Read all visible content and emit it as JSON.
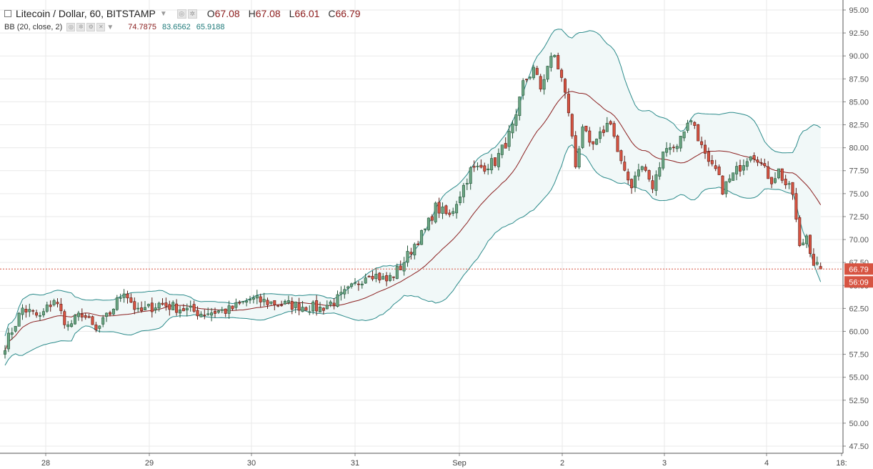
{
  "legend": {
    "symbol_title": "Litecoin / Dollar, 60, BITSTAMP",
    "open_label": "O",
    "open": "67.08",
    "high_label": "H",
    "high": "67.08",
    "low_label": "L",
    "low": "66.01",
    "close_label": "C",
    "close": "66.79",
    "indicator_title": "BB (20, close, 2)",
    "bb_basis": "74.7875",
    "bb_upper": "83.6562",
    "bb_lower": "65.9188"
  },
  "colors": {
    "up": "#6ba583",
    "up_border": "#225437",
    "down": "#d75442",
    "down_border": "#5b1a13",
    "basis": "#8b2020",
    "band": "#2a8a8a",
    "band_fill": "#f1f8f8",
    "grid": "#e9e9e9",
    "price_line": "#d75442"
  },
  "chart_data": {
    "type": "candlestick",
    "title": "Litecoin / Dollar, 60, BITSTAMP",
    "interval": "60",
    "x_tick_labels": [
      "28",
      "29",
      "30",
      "31",
      "Sep",
      "2",
      "3",
      "4",
      "18:"
    ],
    "y_ticks": [
      47.5,
      50.0,
      52.5,
      55.0,
      57.5,
      60.0,
      62.5,
      65.0,
      67.5,
      70.0,
      72.5,
      75.0,
      77.5,
      80.0,
      82.5,
      85.0,
      87.5,
      90.0,
      92.5,
      95.0
    ],
    "y_tick_labels": [
      "47.50",
      "50.00",
      "52.50",
      "55.00",
      "57.50",
      "60.00",
      "62.50",
      "65.00",
      "67.50",
      "70.00",
      "72.50",
      "75.00",
      "77.50",
      "80.00",
      "82.50",
      "85.00",
      "87.50",
      "90.00",
      "92.50",
      "95.00"
    ],
    "ylim": [
      47.0,
      95.5
    ],
    "grid": true,
    "last_price": 66.79,
    "last_price_label": "66.79",
    "countdown_label": "56:09",
    "close_path": [
      [
        0,
        58.5
      ],
      [
        5,
        62.5
      ],
      [
        10,
        61.5
      ],
      [
        14,
        63.5
      ],
      [
        18,
        60.5
      ],
      [
        22,
        62.0
      ],
      [
        26,
        60.0
      ],
      [
        30,
        62.0
      ],
      [
        34,
        64.5
      ],
      [
        38,
        62.0
      ],
      [
        44,
        63.0
      ],
      [
        50,
        62.5
      ],
      [
        56,
        62.0
      ],
      [
        64,
        62.3
      ],
      [
        70,
        63.5
      ],
      [
        78,
        63.0
      ],
      [
        84,
        62.8
      ],
      [
        90,
        62.5
      ],
      [
        95,
        63.5
      ],
      [
        100,
        65.0
      ],
      [
        104,
        66.5
      ],
      [
        109,
        65.5
      ],
      [
        113,
        67.0
      ],
      [
        117,
        69.5
      ],
      [
        120,
        71.0
      ],
      [
        123,
        73.5
      ],
      [
        127,
        72.5
      ],
      [
        130,
        75.0
      ],
      [
        133,
        77.5
      ],
      [
        137,
        78.0
      ],
      [
        140,
        78.5
      ],
      [
        143,
        80.5
      ],
      [
        146,
        83.0
      ],
      [
        148,
        87.0
      ],
      [
        151,
        88.5
      ],
      [
        153,
        86.5
      ],
      [
        155,
        89.0
      ],
      [
        157,
        90.0
      ],
      [
        159,
        87.5
      ],
      [
        161,
        84.0
      ],
      [
        163,
        78.0
      ],
      [
        165,
        82.5
      ],
      [
        167,
        80.0
      ],
      [
        169,
        80.5
      ],
      [
        171,
        82.0
      ],
      [
        173,
        83.0
      ],
      [
        175,
        79.5
      ],
      [
        177,
        77.0
      ],
      [
        179,
        76.0
      ],
      [
        181,
        78.0
      ],
      [
        183,
        77.5
      ],
      [
        185,
        75.5
      ],
      [
        187,
        78.0
      ],
      [
        189,
        80.5
      ],
      [
        191,
        80.0
      ],
      [
        193,
        81.0
      ],
      [
        195,
        83.0
      ],
      [
        197,
        82.5
      ],
      [
        199,
        80.0
      ],
      [
        201,
        78.0
      ],
      [
        203,
        77.5
      ],
      [
        205,
        75.5
      ],
      [
        207,
        76.5
      ],
      [
        209,
        77.5
      ],
      [
        211,
        78.5
      ],
      [
        213,
        79.5
      ],
      [
        215,
        79.0
      ],
      [
        217,
        77.5
      ],
      [
        219,
        76.5
      ],
      [
        221,
        77.5
      ],
      [
        223,
        76.0
      ],
      [
        225,
        75.0
      ],
      [
        227,
        69.0
      ],
      [
        229,
        70.5
      ],
      [
        231,
        67.5
      ],
      [
        233,
        66.79
      ]
    ],
    "candle_count": 234,
    "bollinger": {
      "period": 20,
      "source": "close",
      "stddev": 2,
      "basis": 74.7875,
      "upper": 83.6562,
      "lower": 65.9188
    }
  }
}
